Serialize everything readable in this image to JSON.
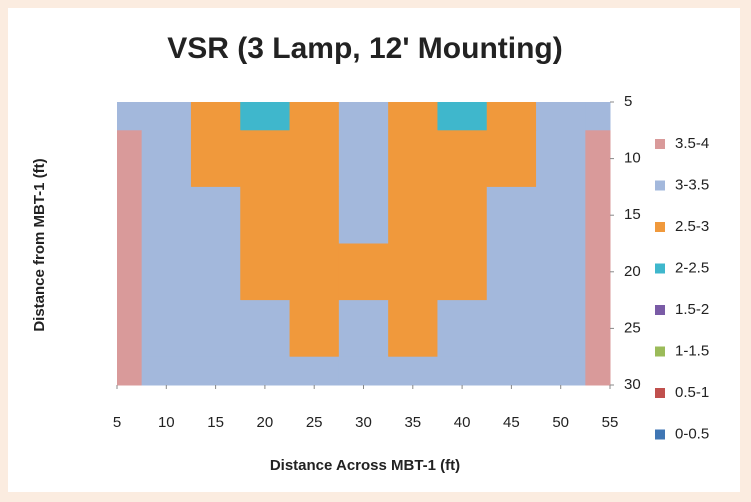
{
  "chart_data": {
    "type": "contour",
    "title": "VSR (3 Lamp, 12' Mounting)",
    "x_label": "Distance Across MBT-1 (ft)",
    "y_label": "Distance from MBT-1 (ft)",
    "x": [
      5,
      10,
      15,
      20,
      25,
      30,
      35,
      40,
      45,
      50,
      55
    ],
    "y": [
      5,
      10,
      15,
      20,
      25,
      30
    ],
    "xlim": [
      5,
      55
    ],
    "ylim": [
      5,
      30
    ],
    "xticks": [
      5,
      10,
      15,
      20,
      25,
      30,
      35,
      40,
      45,
      50,
      55
    ],
    "yticks": [
      5,
      10,
      15,
      20,
      25,
      30
    ],
    "y_reversed": true,
    "values": [
      [
        3.3,
        3.2,
        2.7,
        2.2,
        2.6,
        3.3,
        2.6,
        2.2,
        2.7,
        3.2,
        3.3
      ],
      [
        3.6,
        3.4,
        2.7,
        2.7,
        2.6,
        3.3,
        2.6,
        2.7,
        2.7,
        3.4,
        3.6
      ],
      [
        3.6,
        3.4,
        3.2,
        2.7,
        2.6,
        3.2,
        2.6,
        2.7,
        3.2,
        3.4,
        3.6
      ],
      [
        3.6,
        3.4,
        3.2,
        2.7,
        2.6,
        2.8,
        2.6,
        2.7,
        3.2,
        3.4,
        3.6
      ],
      [
        3.6,
        3.4,
        3.2,
        3.1,
        2.9,
        3.2,
        2.9,
        3.1,
        3.2,
        3.4,
        3.6
      ],
      [
        3.6,
        3.4,
        3.2,
        3.2,
        3.2,
        3.2,
        3.2,
        3.2,
        3.2,
        3.4,
        3.6
      ]
    ],
    "bands": [
      {
        "label": "3.5-4",
        "min": 3.5,
        "max": 4,
        "color": "#d99a9a"
      },
      {
        "label": "3-3.5",
        "min": 3,
        "max": 3.5,
        "color": "#a3b8dc"
      },
      {
        "label": "2.5-3",
        "min": 2.5,
        "max": 3,
        "color": "#f0993c"
      },
      {
        "label": "2-2.5",
        "min": 2,
        "max": 2.5,
        "color": "#3fb7cc"
      },
      {
        "label": "1.5-2",
        "min": 1.5,
        "max": 2,
        "color": "#7a5ba6"
      },
      {
        "label": "1-1.5",
        "min": 1,
        "max": 1.5,
        "color": "#9bbb59"
      },
      {
        "label": "0.5-1",
        "min": 0.5,
        "max": 1,
        "color": "#c0504d"
      },
      {
        "label": "0-0.5",
        "min": 0,
        "max": 0.5,
        "color": "#3f76b4"
      }
    ]
  }
}
